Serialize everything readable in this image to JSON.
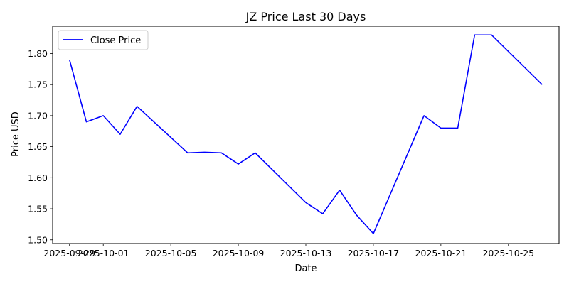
{
  "chart_data": {
    "type": "line",
    "title": "JZ Price Last 30 Days",
    "xlabel": "Date",
    "ylabel": "Price USD",
    "x_ticks": [
      "2025-09-29",
      "2025-10-01",
      "2025-10-05",
      "2025-10-09",
      "2025-10-13",
      "2025-10-17",
      "2025-10-21",
      "2025-10-25"
    ],
    "y_ticks": [
      1.5,
      1.55,
      1.6,
      1.65,
      1.7,
      1.75,
      1.8
    ],
    "xlim": [
      "2025-09-28",
      "2025-10-28"
    ],
    "ylim": [
      1.494,
      1.844
    ],
    "grid": false,
    "legend_position": "top-left",
    "series": [
      {
        "name": "Close Price",
        "color": "#0000ff",
        "x": [
          "2025-09-29",
          "2025-09-30",
          "2025-10-01",
          "2025-10-02",
          "2025-10-03",
          "2025-10-06",
          "2025-10-07",
          "2025-10-08",
          "2025-10-09",
          "2025-10-10",
          "2025-10-13",
          "2025-10-14",
          "2025-10-15",
          "2025-10-16",
          "2025-10-17",
          "2025-10-20",
          "2025-10-21",
          "2025-10-22",
          "2025-10-23",
          "2025-10-24",
          "2025-10-27"
        ],
        "y": [
          1.79,
          1.69,
          1.7,
          1.67,
          1.715,
          1.64,
          1.641,
          1.64,
          1.622,
          1.64,
          1.56,
          1.542,
          1.58,
          1.54,
          1.51,
          1.7,
          1.68,
          1.68,
          1.83,
          1.83,
          1.75
        ]
      }
    ]
  }
}
